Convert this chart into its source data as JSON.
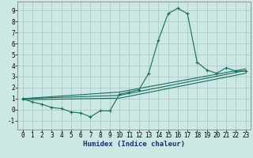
{
  "xlabel": "Humidex (Indice chaleur)",
  "bg_color": "#cce8e4",
  "grid_color": "#b0ceca",
  "line_color": "#1a6b5e",
  "xlim": [
    -0.5,
    23.5
  ],
  "ylim": [
    -1.8,
    9.8
  ],
  "xticks": [
    0,
    1,
    2,
    3,
    4,
    5,
    6,
    7,
    8,
    9,
    10,
    11,
    12,
    13,
    14,
    15,
    16,
    17,
    18,
    19,
    20,
    21,
    22,
    23
  ],
  "yticks": [
    -1,
    0,
    1,
    2,
    3,
    4,
    5,
    6,
    7,
    8,
    9
  ],
  "series": [
    [
      0,
      1.0
    ],
    [
      1,
      0.7
    ],
    [
      2,
      0.5
    ],
    [
      3,
      0.2
    ],
    [
      4,
      0.1
    ],
    [
      5,
      -0.2
    ],
    [
      6,
      -0.3
    ],
    [
      7,
      -0.65
    ],
    [
      8,
      -0.1
    ],
    [
      9,
      -0.1
    ],
    [
      10,
      1.4
    ],
    [
      11,
      1.6
    ],
    [
      12,
      1.8
    ],
    [
      13,
      3.3
    ],
    [
      14,
      6.3
    ],
    [
      15,
      8.7
    ],
    [
      16,
      9.2
    ],
    [
      17,
      8.7
    ],
    [
      18,
      4.3
    ],
    [
      19,
      3.6
    ],
    [
      20,
      3.3
    ],
    [
      21,
      3.8
    ],
    [
      22,
      3.5
    ],
    [
      23,
      3.5
    ]
  ],
  "line2": [
    [
      0,
      1.0
    ],
    [
      10,
      1.6
    ],
    [
      23,
      3.7
    ]
  ],
  "line3": [
    [
      0,
      1.0
    ],
    [
      10,
      1.3
    ],
    [
      23,
      3.55
    ]
  ],
  "line4": [
    [
      0,
      0.9
    ],
    [
      10,
      1.05
    ],
    [
      23,
      3.3
    ]
  ],
  "xlabel_fontsize": 6.5,
  "tick_fontsize": 5.5
}
